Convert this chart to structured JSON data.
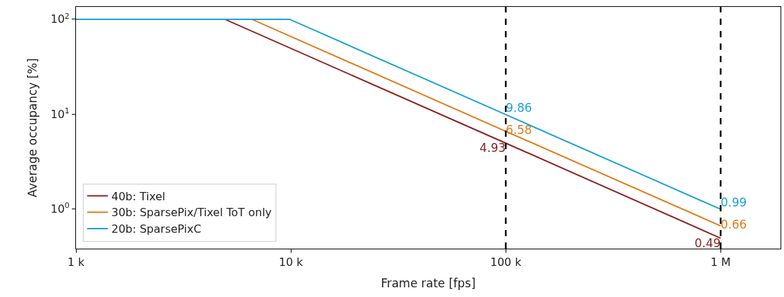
{
  "chart_data": {
    "type": "line",
    "xlabel": "Frame rate [fps]",
    "ylabel": "Average occupancy [%]",
    "log": "xy",
    "xlim": [
      1000,
      1900000
    ],
    "ylim": [
      0.38,
      135
    ],
    "xticks": [
      {
        "value": 1000,
        "label": "1 k"
      },
      {
        "value": 10000,
        "label": "10 k"
      },
      {
        "value": 100000,
        "label": "100 k"
      },
      {
        "value": 1000000,
        "label": "1 M"
      }
    ],
    "yticks": [
      {
        "value": 1,
        "label": "10$^{0}$"
      },
      {
        "value": 10,
        "label": "10$^{1}$"
      },
      {
        "value": 100,
        "label": "10$^{2}$"
      }
    ],
    "legend": "bottom left",
    "line_style": "solid",
    "marker": "none",
    "series": [
      {
        "name": "40b: Tixel",
        "color": "#8b2323",
        "x": [
          1000,
          4930,
          100000,
          1000000
        ],
        "values": [
          100,
          100,
          4.93,
          0.49
        ],
        "value_labels": [
          null,
          null,
          "4.93",
          "0.49"
        ]
      },
      {
        "name": "30b: SparsePix/Tixel ToT only",
        "color": "#e07b1a",
        "x": [
          1000,
          6580,
          100000,
          1000000
        ],
        "values": [
          100,
          100,
          6.58,
          0.66
        ],
        "value_labels": [
          null,
          null,
          "6.58",
          "0.66"
        ]
      },
      {
        "name": "20b: SparsePixC",
        "color": "#1ba3d0",
        "x": [
          1000,
          9860,
          100000,
          1000000
        ],
        "values": [
          100,
          100,
          9.86,
          0.99
        ],
        "value_labels": [
          null,
          null,
          "9.86",
          "0.99"
        ]
      }
    ],
    "ref_lines": [
      {
        "axis": "x",
        "value": 100000,
        "label": null,
        "color": "#000000",
        "line_style": "dashed"
      },
      {
        "axis": "x",
        "value": 1000000,
        "label": null,
        "color": "#000000",
        "line_style": "dashed"
      }
    ]
  }
}
